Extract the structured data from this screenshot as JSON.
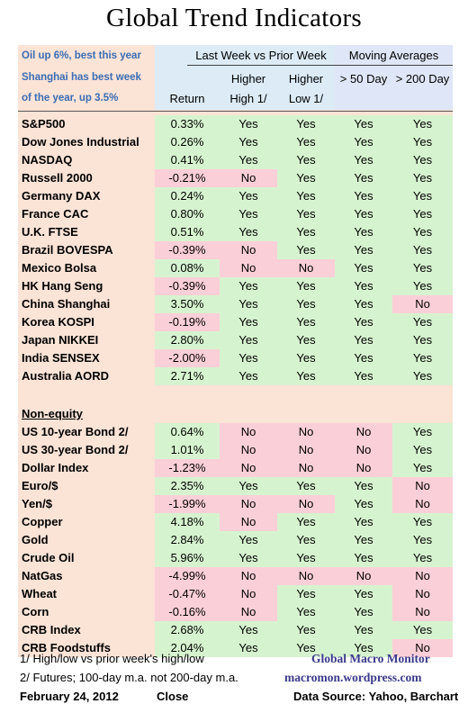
{
  "title": "Global Trend Indicators",
  "notes": [
    "Oil up 6%, best this year",
    "Shanghai has best week",
    "of the year, up 3.5%"
  ],
  "header": {
    "group1": "Last Week vs Prior Week",
    "group2": "Moving Averages",
    "return": "Return",
    "higher_high_1": "Higher",
    "higher_high_2": "High 1/",
    "higher_low_1": "Higher",
    "higher_low_2": "Low 1/",
    "ma50": "> 50 Day",
    "ma200": "> 200 Day"
  },
  "equity_rows": [
    {
      "name": "S&P500",
      "ret": "0.33%",
      "hh": "Yes",
      "hl": "Yes",
      "ma50": "Yes",
      "ma200": "Yes"
    },
    {
      "name": "Dow Jones Industrial",
      "ret": "0.26%",
      "hh": "Yes",
      "hl": "Yes",
      "ma50": "Yes",
      "ma200": "Yes"
    },
    {
      "name": "NASDAQ",
      "ret": "0.41%",
      "hh": "Yes",
      "hl": "Yes",
      "ma50": "Yes",
      "ma200": "Yes"
    },
    {
      "name": "Russell 2000",
      "ret": "-0.21%",
      "hh": "No",
      "hl": "Yes",
      "ma50": "Yes",
      "ma200": "Yes"
    },
    {
      "name": "Germany DAX",
      "ret": "0.24%",
      "hh": "Yes",
      "hl": "Yes",
      "ma50": "Yes",
      "ma200": "Yes"
    },
    {
      "name": "France CAC",
      "ret": "0.80%",
      "hh": "Yes",
      "hl": "Yes",
      "ma50": "Yes",
      "ma200": "Yes"
    },
    {
      "name": "U.K. FTSE",
      "ret": "0.51%",
      "hh": "Yes",
      "hl": "Yes",
      "ma50": "Yes",
      "ma200": "Yes"
    },
    {
      "name": "Brazil BOVESPA",
      "ret": "-0.39%",
      "hh": "No",
      "hl": "Yes",
      "ma50": "Yes",
      "ma200": "Yes"
    },
    {
      "name": "Mexico Bolsa",
      "ret": "0.08%",
      "hh": "No",
      "hl": "No",
      "ma50": "Yes",
      "ma200": "Yes"
    },
    {
      "name": "HK  Hang Seng",
      "ret": "-0.39%",
      "hh": "Yes",
      "hl": "Yes",
      "ma50": "Yes",
      "ma200": "Yes"
    },
    {
      "name": "China Shanghai",
      "ret": "3.50%",
      "hh": "Yes",
      "hl": "Yes",
      "ma50": "Yes",
      "ma200": "No"
    },
    {
      "name": "Korea KOSPI",
      "ret": "-0.19%",
      "hh": "Yes",
      "hl": "Yes",
      "ma50": "Yes",
      "ma200": "Yes"
    },
    {
      "name": "Japan NIKKEI",
      "ret": "2.80%",
      "hh": "Yes",
      "hl": "Yes",
      "ma50": "Yes",
      "ma200": "Yes"
    },
    {
      "name": "India SENSEX",
      "ret": "-2.00%",
      "hh": "Yes",
      "hl": "Yes",
      "ma50": "Yes",
      "ma200": "Yes"
    },
    {
      "name": "Australia AORD",
      "ret": "2.71%",
      "hh": "Yes",
      "hl": "Yes",
      "ma50": "Yes",
      "ma200": "Yes"
    }
  ],
  "section_label": "Non-equity",
  "nonequity_rows": [
    {
      "name": "US 10-year Bond 2/",
      "ret": "0.64%",
      "hh": "No",
      "hl": "No",
      "ma50": "No",
      "ma200": "Yes"
    },
    {
      "name": "US 30-year Bond 2/",
      "ret": "1.01%",
      "hh": "No",
      "hl": "No",
      "ma50": "No",
      "ma200": "Yes"
    },
    {
      "name": "Dollar Index",
      "ret": "-1.23%",
      "hh": "No",
      "hl": "No",
      "ma50": "No",
      "ma200": "Yes"
    },
    {
      "name": "Euro/$",
      "ret": "2.35%",
      "hh": "Yes",
      "hl": "Yes",
      "ma50": "Yes",
      "ma200": "No"
    },
    {
      "name": "Yen/$",
      "ret": "-1.99%",
      "hh": "No",
      "hl": "No",
      "ma50": "Yes",
      "ma200": "No"
    },
    {
      "name": "Copper",
      "ret": "4.18%",
      "hh": "No",
      "hl": "Yes",
      "ma50": "Yes",
      "ma200": "Yes"
    },
    {
      "name": "Gold",
      "ret": "2.84%",
      "hh": "Yes",
      "hl": "Yes",
      "ma50": "Yes",
      "ma200": "Yes"
    },
    {
      "name": "Crude Oil",
      "ret": "5.96%",
      "hh": "Yes",
      "hl": "Yes",
      "ma50": "Yes",
      "ma200": "Yes"
    },
    {
      "name": "NatGas",
      "ret": "-4.99%",
      "hh": "No",
      "hl": "No",
      "ma50": "No",
      "ma200": "No"
    },
    {
      "name": "Wheat",
      "ret": "-0.47%",
      "hh": "No",
      "hl": "Yes",
      "ma50": "Yes",
      "ma200": "No"
    },
    {
      "name": "Corn",
      "ret": "-0.16%",
      "hh": "No",
      "hl": "Yes",
      "ma50": "Yes",
      "ma200": "No"
    },
    {
      "name": "CRB Index",
      "ret": "2.68%",
      "hh": "Yes",
      "hl": "Yes",
      "ma50": "Yes",
      "ma200": "Yes"
    },
    {
      "name": "CRB Foodstuffs",
      "ret": "2.04%",
      "hh": "Yes",
      "hl": "Yes",
      "ma50": "Yes",
      "ma200": "No"
    }
  ],
  "footnotes": {
    "note1": "1/  High/low vs prior week's high/low",
    "note2": "2/  Futures;  100-day m.a. not 200-day m.a.",
    "date": "February 24, 2012",
    "close": "Close",
    "brand": "Global Macro Monitor",
    "site": "macromon.wordpress.com",
    "source": "Data Source: Yahoo, Barchart"
  },
  "colors": {
    "green": "#d6f3cf",
    "red": "#fbcfd7",
    "peach": "#fbe3d6",
    "header_blue": "#dcebf6",
    "note_blue": "#3a6db4"
  }
}
